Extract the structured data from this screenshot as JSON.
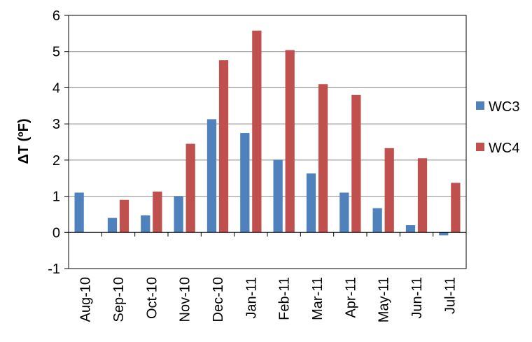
{
  "chart_data": {
    "type": "bar",
    "title": "",
    "xlabel": "",
    "ylabel": "ΔT (ºF)",
    "ylim": [
      -1,
      6
    ],
    "yticks": [
      -1,
      0,
      1,
      2,
      3,
      4,
      5,
      6
    ],
    "grid": true,
    "legend_position": "right",
    "categories": [
      "Aug-10",
      "Sep-10",
      "Oct-10",
      "Nov-10",
      "Dec-10",
      "Jan-11",
      "Feb-11",
      "Mar-11",
      "Apr-11",
      "May-11",
      "Jun-11",
      "Jul-11"
    ],
    "series": [
      {
        "name": "WC3",
        "color": "#4F81BD",
        "values": [
          1.1,
          0.4,
          0.47,
          1.0,
          3.13,
          2.75,
          2.01,
          1.63,
          1.1,
          0.67,
          0.2,
          -0.08
        ]
      },
      {
        "name": "WC4",
        "color": "#C0504D",
        "values": [
          0,
          0.9,
          1.13,
          2.45,
          4.76,
          5.58,
          5.04,
          4.1,
          3.8,
          2.33,
          2.05,
          1.37
        ]
      }
    ]
  }
}
